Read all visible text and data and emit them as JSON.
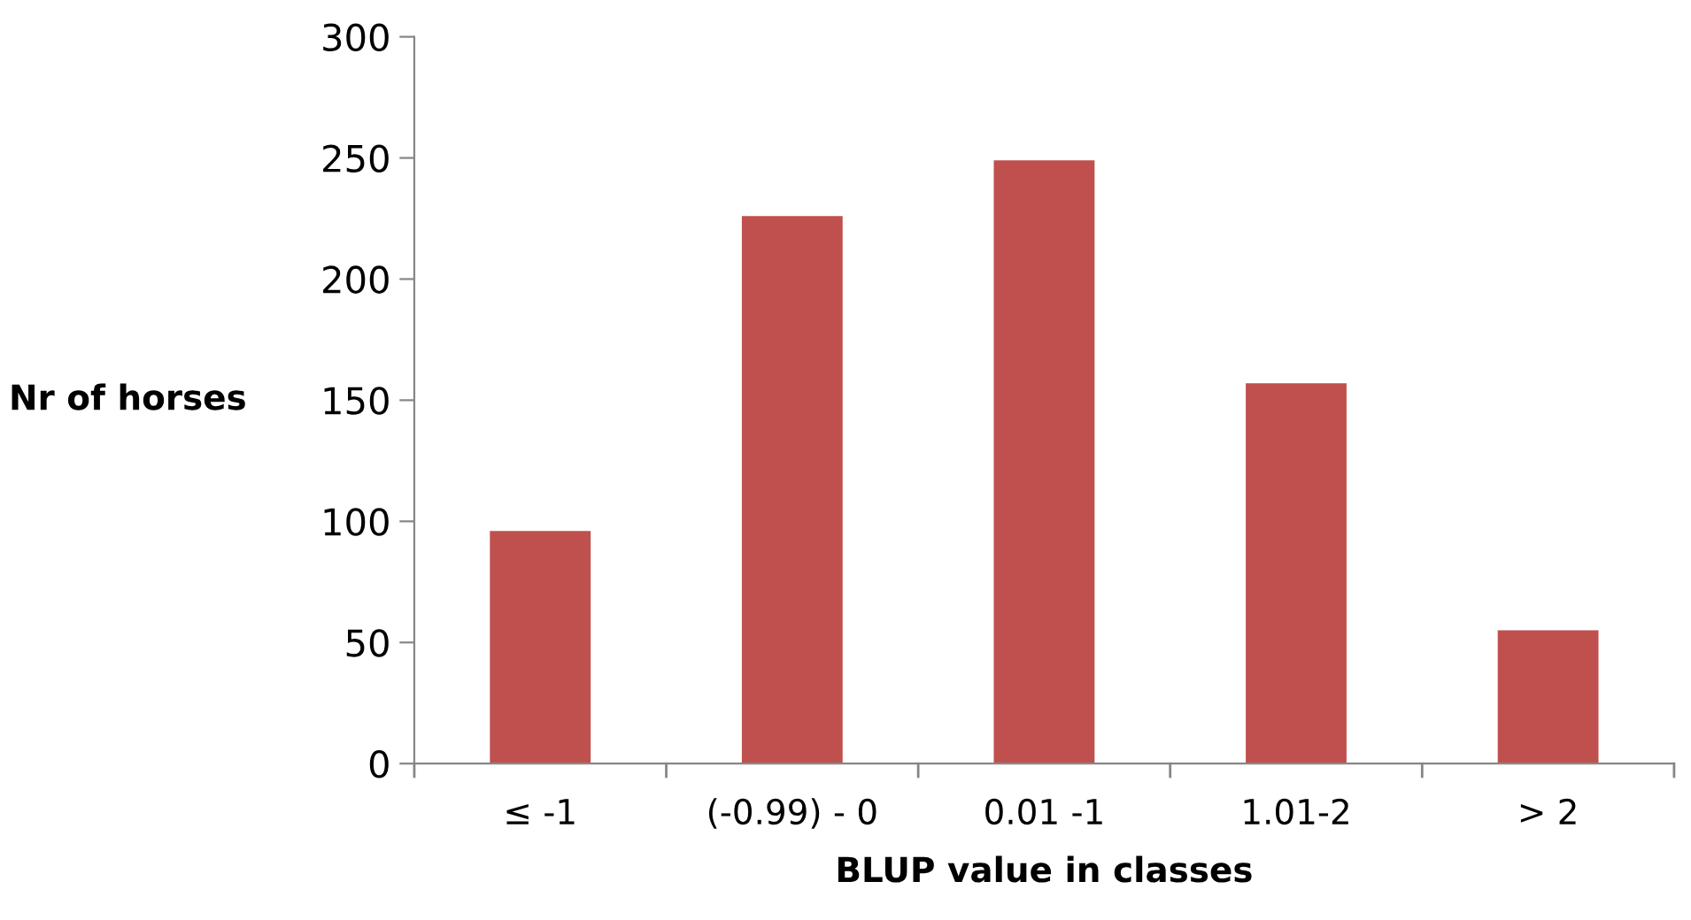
{
  "chart_data": {
    "type": "bar",
    "xlabel": "BLUP value in classes",
    "ylabel": "Nr of horses",
    "categories": [
      "≤ -1",
      "(-0.99) - 0",
      "0.01 -1",
      "1.01-2",
      "> 2"
    ],
    "values": [
      96,
      226,
      249,
      157,
      55
    ],
    "color": "#c0504d",
    "ylim": [
      0,
      300
    ],
    "yticks": [
      0,
      50,
      100,
      150,
      200,
      250,
      300
    ],
    "grid": false,
    "legend": false
  }
}
